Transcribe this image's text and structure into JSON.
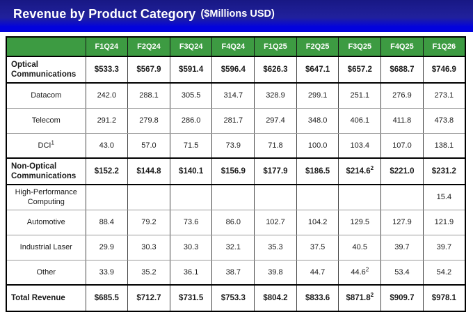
{
  "title": {
    "main": "Revenue by Product Category",
    "unit": "($Millions USD)"
  },
  "table": {
    "corner_label": "",
    "columns": [
      "F1Q24",
      "F2Q24",
      "F3Q24",
      "F4Q24",
      "F1Q25",
      "F2Q25",
      "F3Q25",
      "F4Q25",
      "F1Q26"
    ],
    "rows": [
      {
        "label": "Optical Communications",
        "bold": true,
        "values": [
          "$533.3",
          "$567.9",
          "$591.4",
          "$596.4",
          "$626.3",
          "$647.1",
          "$657.2",
          "$688.7",
          "$746.9"
        ]
      },
      {
        "label": "Datacom",
        "bold": false,
        "values": [
          "242.0",
          "288.1",
          "305.5",
          "314.7",
          "328.9",
          "299.1",
          "251.1",
          "276.9",
          "273.1"
        ]
      },
      {
        "label": "Telecom",
        "bold": false,
        "values": [
          "291.2",
          "279.8",
          "286.0",
          "281.7",
          "297.4",
          "348.0",
          "406.1",
          "411.8",
          "473.8"
        ]
      },
      {
        "label": "DCI^1",
        "bold": false,
        "values": [
          "43.0",
          "57.0",
          "71.5",
          "73.9",
          "71.8",
          "100.0",
          "103.4",
          "107.0",
          "138.1"
        ]
      },
      {
        "label": "Non-Optical Communications",
        "bold": true,
        "values": [
          "$152.2",
          "$144.8",
          "$140.1",
          "$156.9",
          "$177.9",
          "$186.5",
          "$214.6^2",
          "$221.0",
          "$231.2"
        ]
      },
      {
        "label": "High-Performance Computing",
        "bold": false,
        "values": [
          "",
          "",
          "",
          "",
          "",
          "",
          "",
          "",
          "15.4"
        ]
      },
      {
        "label": "Automotive",
        "bold": false,
        "values": [
          "88.4",
          "79.2",
          "73.6",
          "86.0",
          "102.7",
          "104.2",
          "129.5",
          "127.9",
          "121.9"
        ]
      },
      {
        "label": "Industrial Laser",
        "bold": false,
        "values": [
          "29.9",
          "30.3",
          "30.3",
          "32.1",
          "35.3",
          "37.5",
          "40.5",
          "39.7",
          "39.7"
        ]
      },
      {
        "label": "Other",
        "bold": false,
        "values": [
          "33.9",
          "35.2",
          "36.1",
          "38.7",
          "39.8",
          "44.7",
          "44.6^2",
          "53.4",
          "54.2"
        ]
      },
      {
        "label": "Total Revenue",
        "bold": true,
        "values": [
          "$685.5",
          "$712.7",
          "$731.5",
          "$753.3",
          "$804.2",
          "$833.6",
          "$871.8^2",
          "$909.7",
          "$978.1"
        ]
      }
    ]
  },
  "colors": {
    "banner_top": "#181884",
    "banner_mid": "#21219d",
    "banner_stripe": "#0202dd",
    "title_text": "#ffffff",
    "header_green": "#3d9b42",
    "header_divider": "#151515",
    "border_strong": "#000000",
    "border_mid": "#444444",
    "border_light": "#9a9a9a",
    "text_dark": "#1a1a1a"
  }
}
